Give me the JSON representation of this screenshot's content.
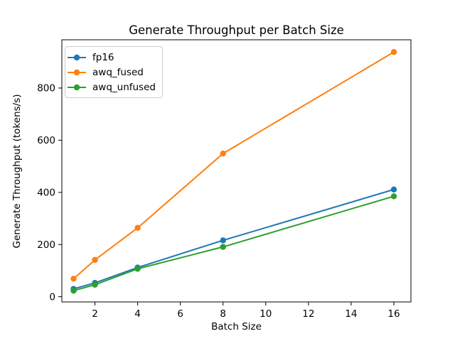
{
  "chart_data": {
    "type": "line",
    "title": "Generate Throughput per Batch Size",
    "xlabel": "Batch Size",
    "ylabel": "Generate Throughput (tokens/s)",
    "x": [
      1,
      2,
      4,
      8,
      16
    ],
    "series": [
      {
        "name": "fp16",
        "color": "#1f77b4",
        "values": [
          30,
          53,
          112,
          216,
          411
        ]
      },
      {
        "name": "awq_fused",
        "color": "#ff7f0e",
        "values": [
          69,
          141,
          264,
          549,
          938
        ]
      },
      {
        "name": "awq_unfused",
        "color": "#2ca02c",
        "values": [
          23,
          46,
          107,
          191,
          385
        ]
      }
    ],
    "xticks": [
      2,
      4,
      6,
      8,
      10,
      12,
      14,
      16
    ],
    "yticks": [
      0,
      200,
      400,
      600,
      800
    ],
    "xlim": [
      0.45,
      16.8
    ],
    "ylim": [
      -20,
      985
    ],
    "marker": "o",
    "grid": false,
    "legend": {
      "position": "upper left",
      "entries": [
        "fp16",
        "awq_fused",
        "awq_unfused"
      ]
    },
    "frame_color": "#000000",
    "background_color": "#ffffff"
  }
}
